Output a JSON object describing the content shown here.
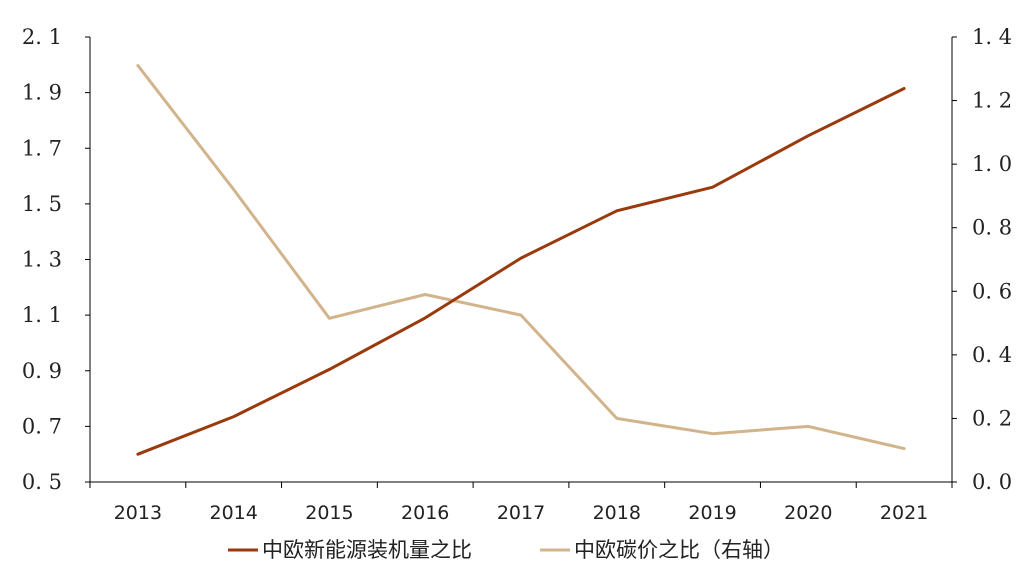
{
  "chart_data": {
    "type": "line",
    "title": "",
    "xlabel": "",
    "ylabel": "",
    "categories": [
      "2013",
      "2014",
      "2015",
      "2016",
      "2017",
      "2018",
      "2019",
      "2020",
      "2021"
    ],
    "y_left": {
      "lim": [
        0.5,
        2.1
      ],
      "ticks": [
        0.5,
        0.7,
        0.9,
        1.1,
        1.3,
        1.5,
        1.7,
        1.9,
        2.1
      ],
      "tick_labels": [
        "0. 5",
        "0. 7",
        "0. 9",
        "1. 1",
        "1. 3",
        "1. 5",
        "1. 7",
        "1. 9",
        "2. 1"
      ]
    },
    "y_right": {
      "lim": [
        0.0,
        1.4
      ],
      "ticks": [
        0.0,
        0.2,
        0.4,
        0.6,
        0.8,
        1.0,
        1.2,
        1.4
      ],
      "tick_labels": [
        "0. 0",
        "0. 2",
        "0. 4",
        "0. 6",
        "0. 8",
        "1. 0",
        "1. 2",
        "1. 4"
      ]
    },
    "series": [
      {
        "name": "中欧新能源装机量之比",
        "axis": "left",
        "color": "#9a3a0c",
        "values": [
          0.6,
          0.735,
          0.905,
          1.09,
          1.305,
          1.475,
          1.56,
          1.745,
          1.915
        ]
      },
      {
        "name": "中欧碳价之比（右轴）",
        "axis": "right",
        "color": "#d2b48c",
        "values": [
          1.31,
          0.92,
          0.515,
          0.59,
          0.525,
          0.2,
          0.152,
          0.175,
          0.105
        ]
      }
    ],
    "grid": false,
    "legend_position": "bottom-center"
  }
}
